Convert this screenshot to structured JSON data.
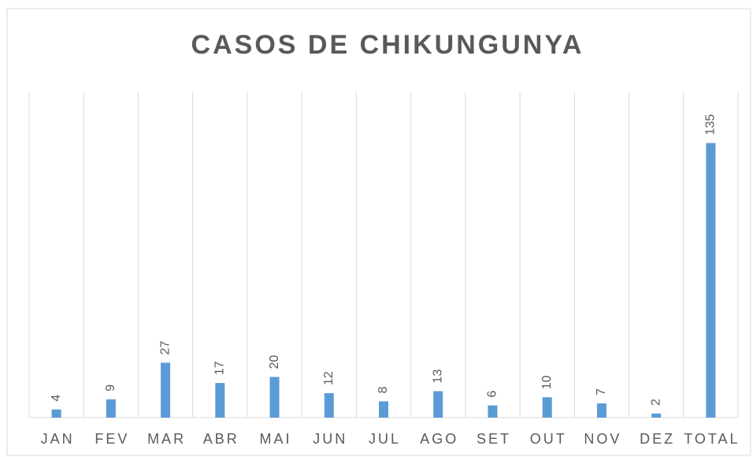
{
  "chart_data": {
    "type": "bar",
    "title": "CASOS DE CHIKUNGUNYA",
    "categories": [
      "JAN",
      "FEV",
      "MAR",
      "ABR",
      "MAI",
      "JUN",
      "JUL",
      "AGO",
      "SET",
      "OUT",
      "NOV",
      "DEZ",
      "TOTAL"
    ],
    "values": [
      4,
      9,
      27,
      17,
      20,
      12,
      8,
      13,
      6,
      10,
      7,
      2,
      135
    ],
    "color": "#5b9bd5",
    "ylim": [
      0,
      160
    ],
    "grid": true
  }
}
